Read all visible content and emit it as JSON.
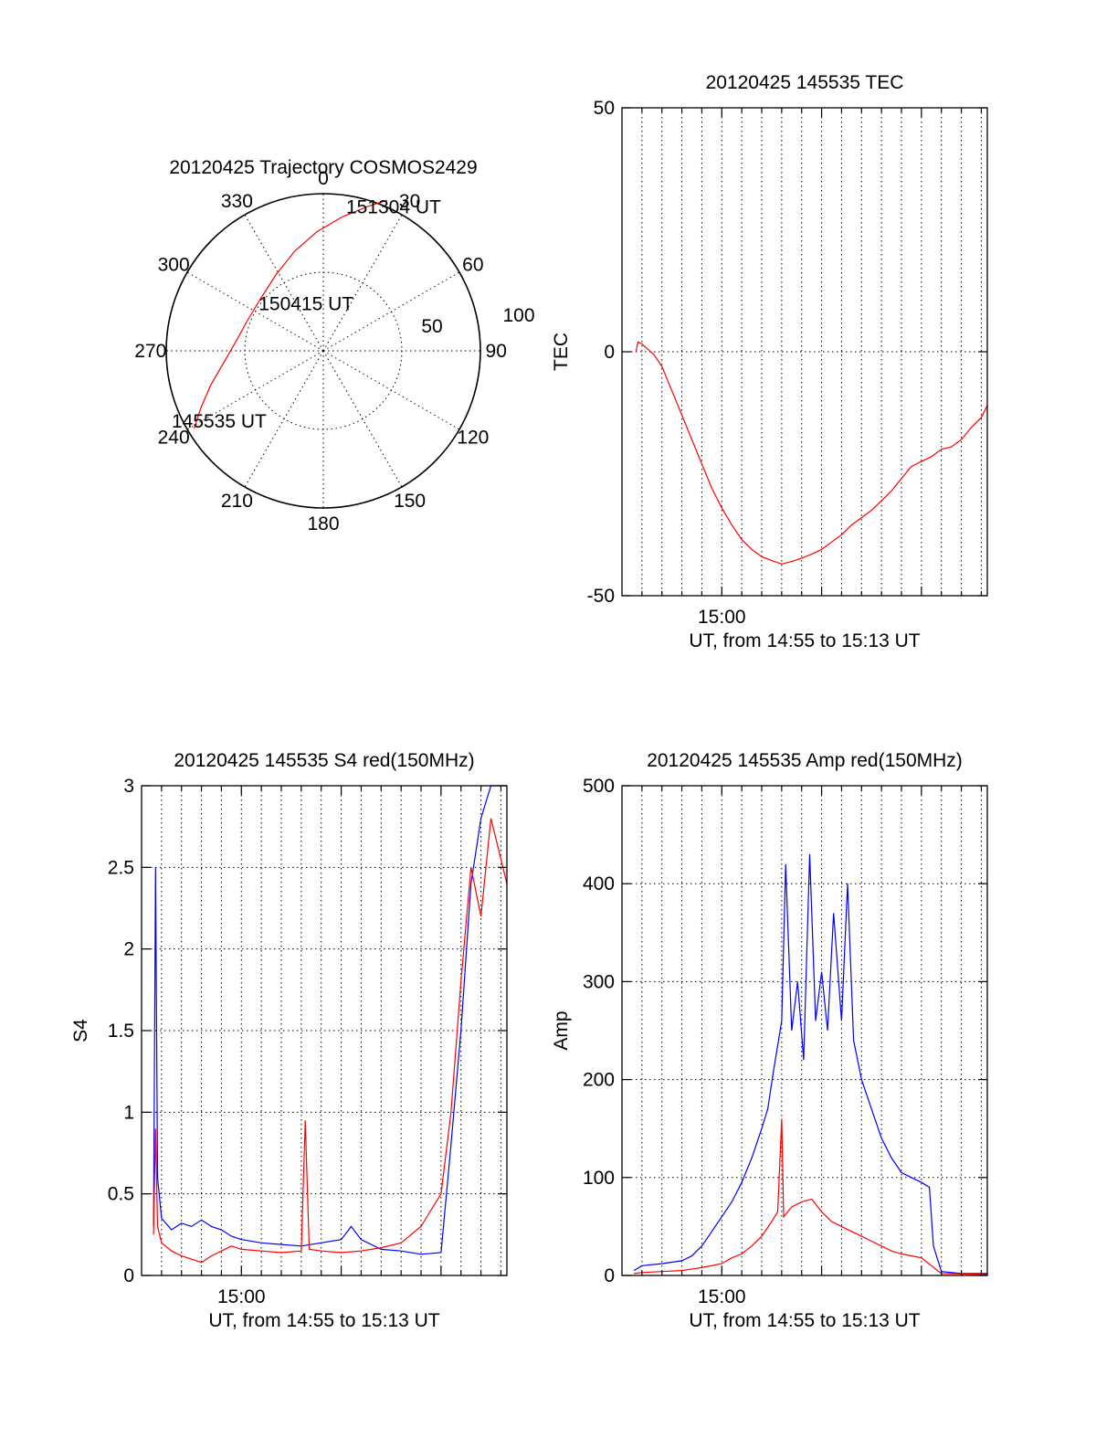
{
  "chart_data": [
    {
      "type": "polar",
      "title": "20120425 Trajectory COSMOS2429",
      "azimuth_labels": [
        "0",
        "30",
        "60",
        "90",
        "120",
        "150",
        "180",
        "210",
        "240",
        "270",
        "300",
        "330"
      ],
      "ring_labels": [
        "50",
        "100"
      ],
      "r_max": 100,
      "trajectory": {
        "color": "#ff0000",
        "points": [
          {
            "az": 239,
            "r": 96
          },
          {
            "az": 245,
            "r": 86
          },
          {
            "az": 253,
            "r": 75
          },
          {
            "az": 263,
            "r": 64
          },
          {
            "az": 276,
            "r": 56
          },
          {
            "az": 292,
            "r": 52
          },
          {
            "az": 310,
            "r": 52
          },
          {
            "az": 328,
            "r": 57
          },
          {
            "az": 344,
            "r": 66
          },
          {
            "az": 357,
            "r": 76
          },
          {
            "az": 8,
            "r": 86
          },
          {
            "az": 17,
            "r": 96
          },
          {
            "az": 23,
            "r": 104
          }
        ]
      },
      "annotations": [
        {
          "text": "151304 UT",
          "az": 26,
          "r": 102
        },
        {
          "text": "150415 UT",
          "az": 340,
          "r": 32
        },
        {
          "text": "145535 UT",
          "az": 236,
          "r": 80
        }
      ]
    },
    {
      "type": "line",
      "title": "20120425 145535 TEC",
      "xlabel": "UT, from 14:55 to 15:13 UT",
      "ylabel": "TEC",
      "xlim_minutes": [
        0,
        18.3
      ],
      "xtick_labels": [
        {
          "minute": 5,
          "label": "15:00"
        }
      ],
      "grid_x_interval_minutes": 1,
      "ylim": [
        -50,
        50
      ],
      "yticks": [
        "-50",
        "0",
        "50"
      ],
      "grid_y": [
        0
      ],
      "series": [
        {
          "color": "#ff0000",
          "points": [
            [
              0.7,
              0.0
            ],
            [
              0.8,
              2.0
            ],
            [
              1.0,
              1.6
            ],
            [
              1.3,
              0.5
            ],
            [
              1.6,
              -0.6
            ],
            [
              2.0,
              -3
            ],
            [
              2.5,
              -8
            ],
            [
              3.0,
              -13
            ],
            [
              3.5,
              -18
            ],
            [
              4.0,
              -23
            ],
            [
              4.5,
              -28
            ],
            [
              5.0,
              -32
            ],
            [
              5.5,
              -35.5
            ],
            [
              6.0,
              -38.5
            ],
            [
              6.5,
              -40.5
            ],
            [
              7.0,
              -42
            ],
            [
              7.5,
              -42.8
            ],
            [
              8.0,
              -43.5
            ],
            [
              8.5,
              -43
            ],
            [
              9.0,
              -42.3
            ],
            [
              9.5,
              -41.5
            ],
            [
              10.0,
              -40.5
            ],
            [
              10.5,
              -39
            ],
            [
              11.0,
              -37.5
            ],
            [
              11.5,
              -35.5
            ],
            [
              12.0,
              -34
            ],
            [
              12.5,
              -32.5
            ],
            [
              13.0,
              -30.5
            ],
            [
              13.5,
              -28.5
            ],
            [
              14.0,
              -26
            ],
            [
              14.5,
              -23.5
            ],
            [
              15.0,
              -22.5
            ],
            [
              15.5,
              -21.5
            ],
            [
              16.0,
              -20
            ],
            [
              16.5,
              -19.5
            ],
            [
              17.0,
              -18
            ],
            [
              17.5,
              -15.5
            ],
            [
              18.0,
              -13.5
            ],
            [
              18.3,
              -11
            ]
          ]
        }
      ]
    },
    {
      "type": "line",
      "title": "20120425 145535 S4 red(150MHz)",
      "xlabel": "UT, from 14:55 to 15:13 UT",
      "ylabel": "S4",
      "xlim_minutes": [
        0,
        18.3
      ],
      "xtick_labels": [
        {
          "minute": 5,
          "label": "15:00"
        }
      ],
      "grid_x_interval_minutes": 1,
      "ylim": [
        0,
        3
      ],
      "yticks": [
        "0",
        "0.5",
        "1",
        "1.5",
        "2",
        "2.5",
        "3"
      ],
      "grid_y": [
        0.5,
        1,
        1.5,
        2,
        2.5
      ],
      "series": [
        {
          "color": "#0000ff",
          "points": [
            [
              0.6,
              0.3
            ],
            [
              0.7,
              2.5
            ],
            [
              0.8,
              0.6
            ],
            [
              1.0,
              0.35
            ],
            [
              1.5,
              0.28
            ],
            [
              2.0,
              0.32
            ],
            [
              2.5,
              0.3
            ],
            [
              3.0,
              0.34
            ],
            [
              3.5,
              0.3
            ],
            [
              4.0,
              0.28
            ],
            [
              4.5,
              0.24
            ],
            [
              5.0,
              0.22
            ],
            [
              6.0,
              0.2
            ],
            [
              7.0,
              0.19
            ],
            [
              8.0,
              0.18
            ],
            [
              9.0,
              0.2
            ],
            [
              10.0,
              0.22
            ],
            [
              10.5,
              0.3
            ],
            [
              11.0,
              0.22
            ],
            [
              12.0,
              0.16
            ],
            [
              13.0,
              0.15
            ],
            [
              14.0,
              0.13
            ],
            [
              15.0,
              0.14
            ],
            [
              15.5,
              0.8
            ],
            [
              16.0,
              1.5
            ],
            [
              16.5,
              2.4
            ],
            [
              17.0,
              2.8
            ],
            [
              17.5,
              3.0
            ],
            [
              18.3,
              3.0
            ]
          ]
        },
        {
          "color": "#ff0000",
          "points": [
            [
              0.6,
              0.25
            ],
            [
              0.7,
              0.9
            ],
            [
              0.8,
              0.3
            ],
            [
              1.0,
              0.2
            ],
            [
              1.5,
              0.15
            ],
            [
              2.0,
              0.12
            ],
            [
              2.5,
              0.1
            ],
            [
              3.0,
              0.08
            ],
            [
              3.5,
              0.12
            ],
            [
              4.0,
              0.15
            ],
            [
              4.5,
              0.18
            ],
            [
              5.0,
              0.16
            ],
            [
              6.0,
              0.15
            ],
            [
              7.0,
              0.14
            ],
            [
              8.0,
              0.15
            ],
            [
              8.2,
              0.95
            ],
            [
              8.4,
              0.16
            ],
            [
              9.0,
              0.15
            ],
            [
              10.0,
              0.14
            ],
            [
              11.0,
              0.15
            ],
            [
              12.0,
              0.17
            ],
            [
              13.0,
              0.2
            ],
            [
              13.5,
              0.25
            ],
            [
              14.0,
              0.3
            ],
            [
              14.5,
              0.4
            ],
            [
              15.0,
              0.5
            ],
            [
              15.5,
              1.0
            ],
            [
              16.0,
              1.8
            ],
            [
              16.5,
              2.5
            ],
            [
              17.0,
              2.2
            ],
            [
              17.5,
              2.8
            ],
            [
              18.3,
              2.4
            ]
          ]
        }
      ]
    },
    {
      "type": "line",
      "title": "20120425 145535 Amp red(150MHz)",
      "xlabel": "UT, from 14:55 to 15:13 UT",
      "ylabel": "Amp",
      "xlim_minutes": [
        0,
        18.3
      ],
      "xtick_labels": [
        {
          "minute": 5,
          "label": "15:00"
        }
      ],
      "grid_x_interval_minutes": 1,
      "ylim": [
        0,
        500
      ],
      "yticks": [
        "0",
        "100",
        "200",
        "300",
        "400",
        "500"
      ],
      "grid_y": [
        100,
        200,
        300,
        400
      ],
      "series": [
        {
          "color": "#0000ff",
          "points": [
            [
              0.6,
              5
            ],
            [
              1.0,
              10
            ],
            [
              2.0,
              12
            ],
            [
              3.0,
              15
            ],
            [
              3.5,
              20
            ],
            [
              4.0,
              30
            ],
            [
              4.5,
              45
            ],
            [
              5.0,
              60
            ],
            [
              5.5,
              75
            ],
            [
              6.0,
              95
            ],
            [
              6.5,
              120
            ],
            [
              7.0,
              150
            ],
            [
              7.3,
              170
            ],
            [
              7.6,
              210
            ],
            [
              8.0,
              260
            ],
            [
              8.2,
              420
            ],
            [
              8.5,
              250
            ],
            [
              8.8,
              300
            ],
            [
              9.1,
              220
            ],
            [
              9.4,
              430
            ],
            [
              9.7,
              260
            ],
            [
              10.0,
              310
            ],
            [
              10.3,
              250
            ],
            [
              10.6,
              370
            ],
            [
              11.0,
              260
            ],
            [
              11.3,
              400
            ],
            [
              11.6,
              240
            ],
            [
              12.0,
              200
            ],
            [
              12.5,
              170
            ],
            [
              13.0,
              140
            ],
            [
              13.5,
              120
            ],
            [
              14.0,
              105
            ],
            [
              14.5,
              100
            ],
            [
              15.0,
              95
            ],
            [
              15.4,
              90
            ],
            [
              15.6,
              30
            ],
            [
              16.0,
              4
            ],
            [
              17.0,
              2
            ],
            [
              18.3,
              2
            ]
          ]
        },
        {
          "color": "#ff0000",
          "points": [
            [
              0.6,
              2
            ],
            [
              1.0,
              3
            ],
            [
              2.0,
              4
            ],
            [
              3.0,
              5
            ],
            [
              4.0,
              8
            ],
            [
              5.0,
              12
            ],
            [
              5.5,
              18
            ],
            [
              6.0,
              22
            ],
            [
              6.5,
              30
            ],
            [
              7.0,
              40
            ],
            [
              7.5,
              55
            ],
            [
              7.8,
              65
            ],
            [
              8.0,
              160
            ],
            [
              8.1,
              60
            ],
            [
              8.5,
              70
            ],
            [
              9.0,
              75
            ],
            [
              9.5,
              78
            ],
            [
              10.0,
              65
            ],
            [
              10.5,
              55
            ],
            [
              11.0,
              50
            ],
            [
              11.5,
              45
            ],
            [
              12.0,
              40
            ],
            [
              12.5,
              35
            ],
            [
              13.0,
              30
            ],
            [
              13.5,
              25
            ],
            [
              14.0,
              22
            ],
            [
              14.5,
              20
            ],
            [
              15.0,
              18
            ],
            [
              15.5,
              10
            ],
            [
              16.0,
              2
            ],
            [
              18.3,
              1
            ]
          ]
        }
      ]
    }
  ]
}
